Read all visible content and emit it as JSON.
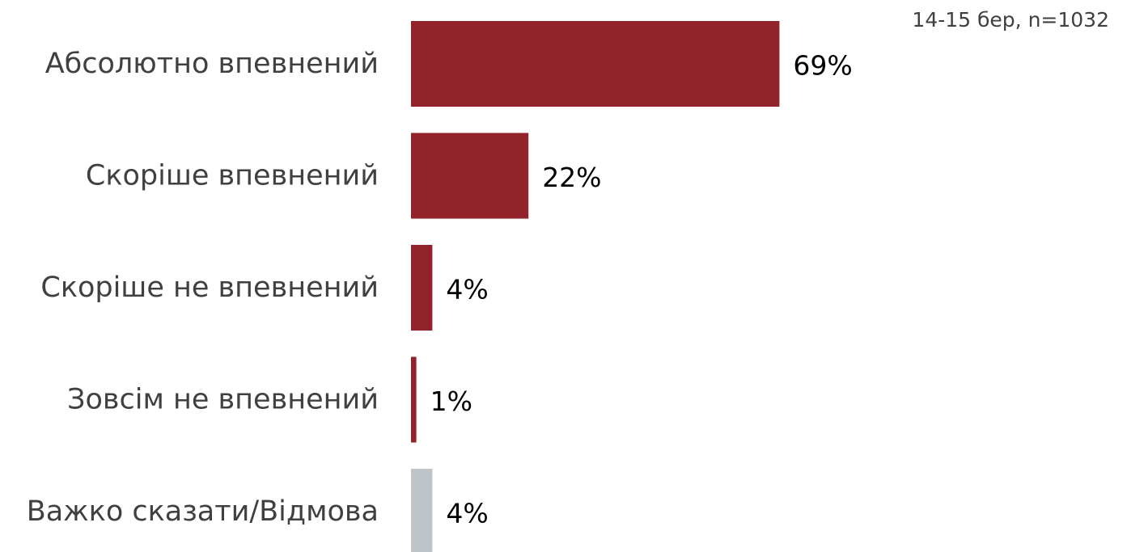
{
  "note": "14-15 бер, n=1032",
  "chart_data": {
    "type": "bar",
    "orientation": "horizontal",
    "categories": [
      "Абсолютно впевнений",
      "Скоріше впевнений",
      "Скоріше не впевнений",
      "Зовсім не впевнений",
      "Важко сказати/Відмова"
    ],
    "values": [
      69,
      22,
      4,
      1,
      4
    ],
    "value_labels": [
      "69%",
      "22%",
      "4%",
      "1%",
      "4%"
    ],
    "unit": "%",
    "xlim": [
      0,
      100
    ],
    "grid": false,
    "legend": "none",
    "colors": [
      "#92232a",
      "#92232a",
      "#92232a",
      "#92232a",
      "#bfc4c8"
    ]
  }
}
